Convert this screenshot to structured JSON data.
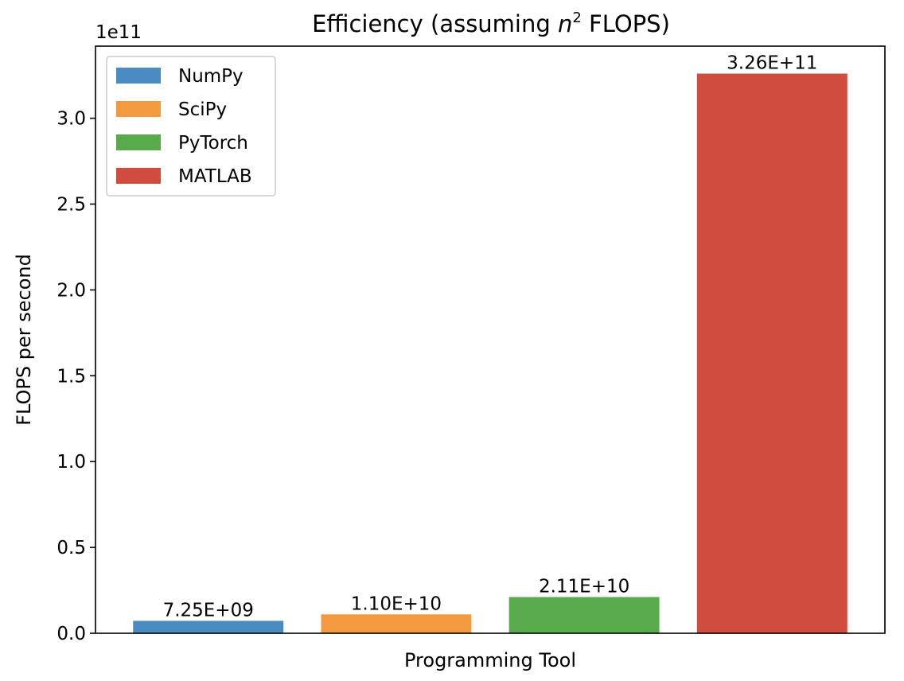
{
  "chart_data": {
    "type": "bar",
    "title_prefix": "Efficiency (assuming ",
    "title_var": "n",
    "title_sup": "2",
    "title_suffix": " FLOPS)",
    "xlabel": "Programming Tool",
    "ylabel": "FLOPS per second",
    "y_offset_label": "1e11",
    "ylim": [
      0,
      342000000000.0
    ],
    "yticks": [
      0,
      50000000000.0,
      100000000000.0,
      150000000000.0,
      200000000000.0,
      250000000000.0,
      300000000000.0
    ],
    "ytick_labels": [
      "0.0",
      "0.5",
      "1.0",
      "1.5",
      "2.0",
      "2.5",
      "3.0"
    ],
    "grid": false,
    "legend_placement": "upper-left",
    "categories": [
      "NumPy",
      "SciPy",
      "PyTorch",
      "MATLAB"
    ],
    "values": [
      7250000000.0,
      11000000000.0,
      21100000000.0,
      326000000000.0
    ],
    "value_labels": [
      "7.25E+09",
      "1.10E+10",
      "2.11E+10",
      "3.26E+11"
    ],
    "colors": [
      "#4a8bc2",
      "#f29a3d",
      "#59aa4d",
      "#d04c3f"
    ]
  }
}
